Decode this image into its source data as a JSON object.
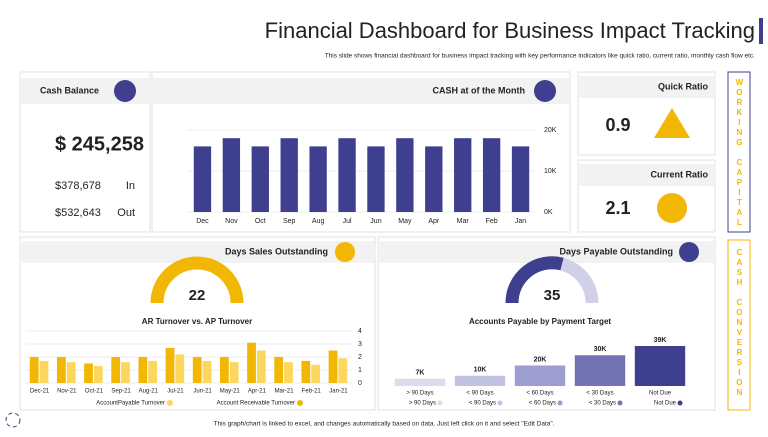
{
  "header": {
    "title": "Financial Dashboard for Business Impact Tracking",
    "subtitle": "This slide shows financial dashboard for business impact tracking with key performance indicators like quick ratio, current ratio, monthly cash flow etc."
  },
  "cash_balance": {
    "title": "Cash Balance",
    "total": "$ 245,258",
    "in_label": "In",
    "in_value": "$378,678",
    "out_label": "Out",
    "out_value": "$532,643"
  },
  "quick_ratio": {
    "title": "Quick Ratio",
    "value": "0.9"
  },
  "current_ratio": {
    "title": "Current Ratio",
    "value": "2.1"
  },
  "side_labels": [
    "WORKING CAPITAL",
    "CASH CONVERSION"
  ],
  "dso": {
    "title": "Days Sales Outstanding",
    "value": "22"
  },
  "dpo": {
    "title": "Days Payable Outstanding",
    "value": "35"
  },
  "footer": "This graph/chart is linked to excel, and changes automatically based on data. Just left click on it and select \"Edit Data\".",
  "chart_data": [
    {
      "type": "bar",
      "title": "CASH at of the Month",
      "categories": [
        "Jan",
        "Feb",
        "Mar",
        "Apr",
        "May",
        "Jun",
        "Jul",
        "Aug",
        "Sep",
        "Oct",
        "Nov",
        "Dec"
      ],
      "values": [
        16000,
        18000,
        18000,
        16000,
        18000,
        16000,
        18000,
        16000,
        18000,
        16000,
        18000,
        16000
      ],
      "color": "#3f3f8f",
      "ylim": [
        0,
        20000
      ],
      "yticks": [
        {
          "value": 0,
          "label": "0K"
        },
        {
          "value": 10000,
          "label": "10K"
        },
        {
          "value": 20000,
          "label": "20K"
        }
      ]
    },
    {
      "type": "grouped-bar",
      "title": "AR Turnover vs. AP Turnover",
      "categories": [
        "Jan-21",
        "Feb-21",
        "Mar-21",
        "Apr-21",
        "May-21",
        "Jun-21",
        "Jul-21",
        "Aug-21",
        "Sep-21",
        "Oct-21",
        "Nov-21",
        "Dec-21"
      ],
      "series": [
        {
          "name": "Account Receivable Turnover",
          "color": "#f2b705",
          "values": [
            2.5,
            1.7,
            2.0,
            3.1,
            2.0,
            2.0,
            2.7,
            2.0,
            2.0,
            1.5,
            2.0,
            2.0
          ]
        },
        {
          "name": "AccountPayable Turnover",
          "color": "#fbd75e",
          "values": [
            1.9,
            1.4,
            1.6,
            2.5,
            1.6,
            1.7,
            2.2,
            1.7,
            1.6,
            1.3,
            1.6,
            1.7
          ]
        }
      ],
      "ylim": [
        0,
        4
      ],
      "yticks": [
        0,
        1,
        2,
        3,
        4
      ]
    },
    {
      "type": "colored-bar",
      "title": "Accounts Payable by Payment Target",
      "categories": [
        "Not Due",
        "< 30 Days",
        "< 60 Days",
        "< 90 Days",
        "> 90 Days"
      ],
      "values": [
        39000,
        30000,
        20000,
        10000,
        7000
      ],
      "value_labels": [
        "39K",
        "30K",
        "20K",
        "10K",
        "7K"
      ],
      "colors": [
        "#3f3f8f",
        "#7474b4",
        "#9d9dcf",
        "#c2c2e3",
        "#dcdcef"
      ]
    }
  ]
}
